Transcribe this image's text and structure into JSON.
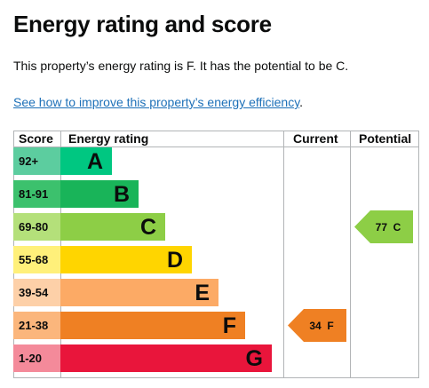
{
  "title": "Energy rating and score",
  "summary": "This property’s energy rating is F. It has the potential to be C.",
  "link_text": "See how to improve this property’s energy efficiency",
  "link_suffix": ".",
  "chart_data": {
    "type": "table",
    "headers": {
      "score": "Score",
      "rating": "Energy rating",
      "current": "Current",
      "potential": "Potential"
    },
    "bands": [
      {
        "score": "92+",
        "letter": "A",
        "color": "#5ccd9f",
        "bar_color": "#00c781"
      },
      {
        "score": "81-91",
        "letter": "B",
        "color": "#3cc16d",
        "bar_color": "#19b459"
      },
      {
        "score": "69-80",
        "letter": "C",
        "color": "#b4e07a",
        "bar_color": "#8dce46"
      },
      {
        "score": "55-68",
        "letter": "D",
        "color": "#fff07a",
        "bar_color": "#ffd500"
      },
      {
        "score": "39-54",
        "letter": "E",
        "color": "#fdd0a8",
        "bar_color": "#fcaa65"
      },
      {
        "score": "21-38",
        "letter": "F",
        "color": "#fbb67c",
        "bar_color": "#ef8023"
      },
      {
        "score": "1-20",
        "letter": "G",
        "color": "#f48a9a",
        "bar_color": "#e9153b"
      }
    ],
    "current": {
      "value": 34,
      "letter": "F",
      "label": "34  F",
      "color": "#ef8023"
    },
    "potential": {
      "value": 77,
      "letter": "C",
      "label": "77  C",
      "color": "#8dce46"
    }
  }
}
